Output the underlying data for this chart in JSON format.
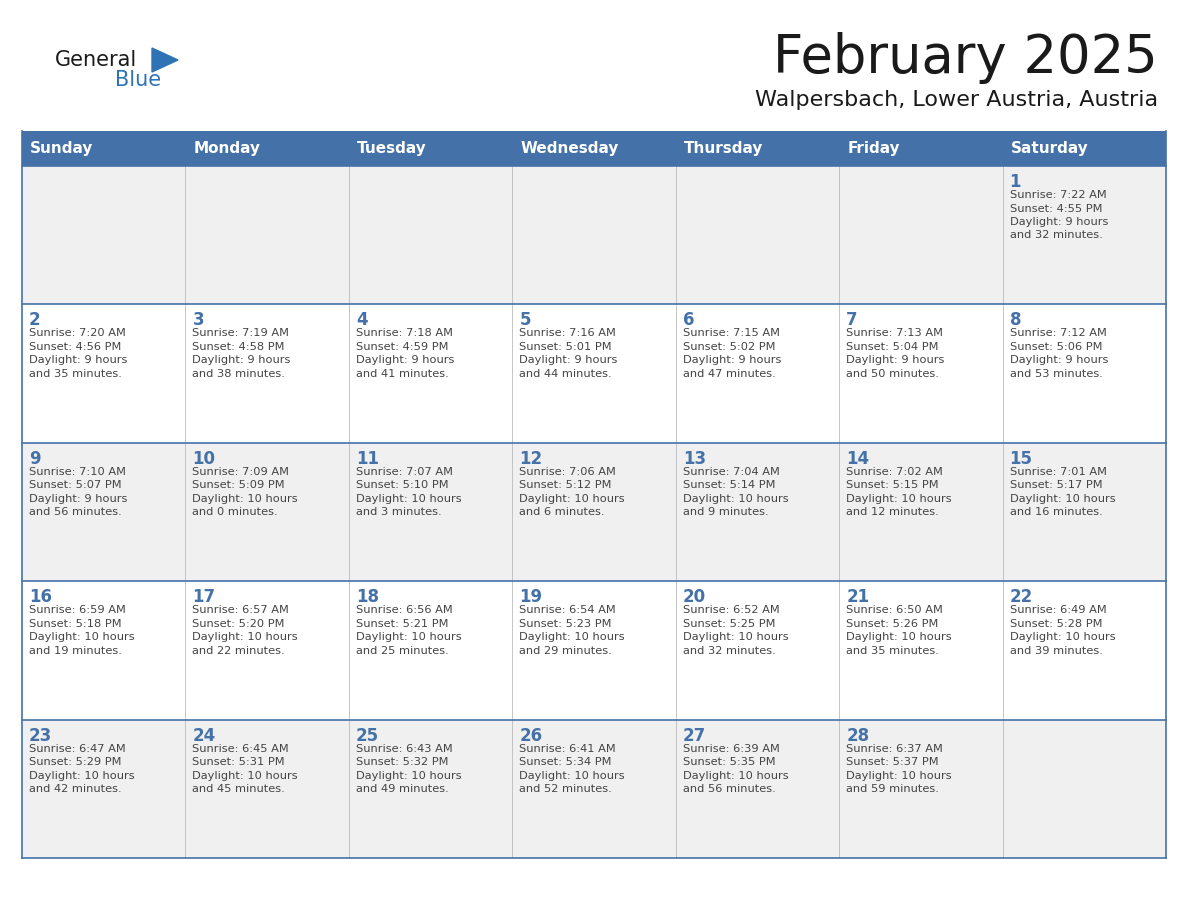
{
  "title": "February 2025",
  "subtitle": "Walpersbach, Lower Austria, Austria",
  "days_of_week": [
    "Sunday",
    "Monday",
    "Tuesday",
    "Wednesday",
    "Thursday",
    "Friday",
    "Saturday"
  ],
  "header_bg": "#4472a8",
  "header_text": "#ffffff",
  "row_bg_gray": "#f0f0f0",
  "row_bg_white": "#ffffff",
  "cell_border_color": "#4472a8",
  "day_num_color": "#4472a8",
  "text_color": "#444444",
  "logo_general_color": "#1a1a1a",
  "logo_blue_color": "#2e74b5",
  "title_color": "#1a1a1a",
  "calendar_data": [
    [
      null,
      null,
      null,
      null,
      null,
      null,
      {
        "day": 1,
        "sunrise": "7:22 AM",
        "sunset": "4:55 PM",
        "daylight": "9 hours and 32 minutes."
      }
    ],
    [
      {
        "day": 2,
        "sunrise": "7:20 AM",
        "sunset": "4:56 PM",
        "daylight": "9 hours and 35 minutes."
      },
      {
        "day": 3,
        "sunrise": "7:19 AM",
        "sunset": "4:58 PM",
        "daylight": "9 hours and 38 minutes."
      },
      {
        "day": 4,
        "sunrise": "7:18 AM",
        "sunset": "4:59 PM",
        "daylight": "9 hours and 41 minutes."
      },
      {
        "day": 5,
        "sunrise": "7:16 AM",
        "sunset": "5:01 PM",
        "daylight": "9 hours and 44 minutes."
      },
      {
        "day": 6,
        "sunrise": "7:15 AM",
        "sunset": "5:02 PM",
        "daylight": "9 hours and 47 minutes."
      },
      {
        "day": 7,
        "sunrise": "7:13 AM",
        "sunset": "5:04 PM",
        "daylight": "9 hours and 50 minutes."
      },
      {
        "day": 8,
        "sunrise": "7:12 AM",
        "sunset": "5:06 PM",
        "daylight": "9 hours and 53 minutes."
      }
    ],
    [
      {
        "day": 9,
        "sunrise": "7:10 AM",
        "sunset": "5:07 PM",
        "daylight": "9 hours and 56 minutes."
      },
      {
        "day": 10,
        "sunrise": "7:09 AM",
        "sunset": "5:09 PM",
        "daylight": "10 hours and 0 minutes."
      },
      {
        "day": 11,
        "sunrise": "7:07 AM",
        "sunset": "5:10 PM",
        "daylight": "10 hours and 3 minutes."
      },
      {
        "day": 12,
        "sunrise": "7:06 AM",
        "sunset": "5:12 PM",
        "daylight": "10 hours and 6 minutes."
      },
      {
        "day": 13,
        "sunrise": "7:04 AM",
        "sunset": "5:14 PM",
        "daylight": "10 hours and 9 minutes."
      },
      {
        "day": 14,
        "sunrise": "7:02 AM",
        "sunset": "5:15 PM",
        "daylight": "10 hours and 12 minutes."
      },
      {
        "day": 15,
        "sunrise": "7:01 AM",
        "sunset": "5:17 PM",
        "daylight": "10 hours and 16 minutes."
      }
    ],
    [
      {
        "day": 16,
        "sunrise": "6:59 AM",
        "sunset": "5:18 PM",
        "daylight": "10 hours and 19 minutes."
      },
      {
        "day": 17,
        "sunrise": "6:57 AM",
        "sunset": "5:20 PM",
        "daylight": "10 hours and 22 minutes."
      },
      {
        "day": 18,
        "sunrise": "6:56 AM",
        "sunset": "5:21 PM",
        "daylight": "10 hours and 25 minutes."
      },
      {
        "day": 19,
        "sunrise": "6:54 AM",
        "sunset": "5:23 PM",
        "daylight": "10 hours and 29 minutes."
      },
      {
        "day": 20,
        "sunrise": "6:52 AM",
        "sunset": "5:25 PM",
        "daylight": "10 hours and 32 minutes."
      },
      {
        "day": 21,
        "sunrise": "6:50 AM",
        "sunset": "5:26 PM",
        "daylight": "10 hours and 35 minutes."
      },
      {
        "day": 22,
        "sunrise": "6:49 AM",
        "sunset": "5:28 PM",
        "daylight": "10 hours and 39 minutes."
      }
    ],
    [
      {
        "day": 23,
        "sunrise": "6:47 AM",
        "sunset": "5:29 PM",
        "daylight": "10 hours and 42 minutes."
      },
      {
        "day": 24,
        "sunrise": "6:45 AM",
        "sunset": "5:31 PM",
        "daylight": "10 hours and 45 minutes."
      },
      {
        "day": 25,
        "sunrise": "6:43 AM",
        "sunset": "5:32 PM",
        "daylight": "10 hours and 49 minutes."
      },
      {
        "day": 26,
        "sunrise": "6:41 AM",
        "sunset": "5:34 PM",
        "daylight": "10 hours and 52 minutes."
      },
      {
        "day": 27,
        "sunrise": "6:39 AM",
        "sunset": "5:35 PM",
        "daylight": "10 hours and 56 minutes."
      },
      {
        "day": 28,
        "sunrise": "6:37 AM",
        "sunset": "5:37 PM",
        "daylight": "10 hours and 59 minutes."
      },
      null
    ]
  ],
  "row_bg_pattern": [
    "gray",
    "white",
    "gray",
    "white",
    "gray"
  ]
}
